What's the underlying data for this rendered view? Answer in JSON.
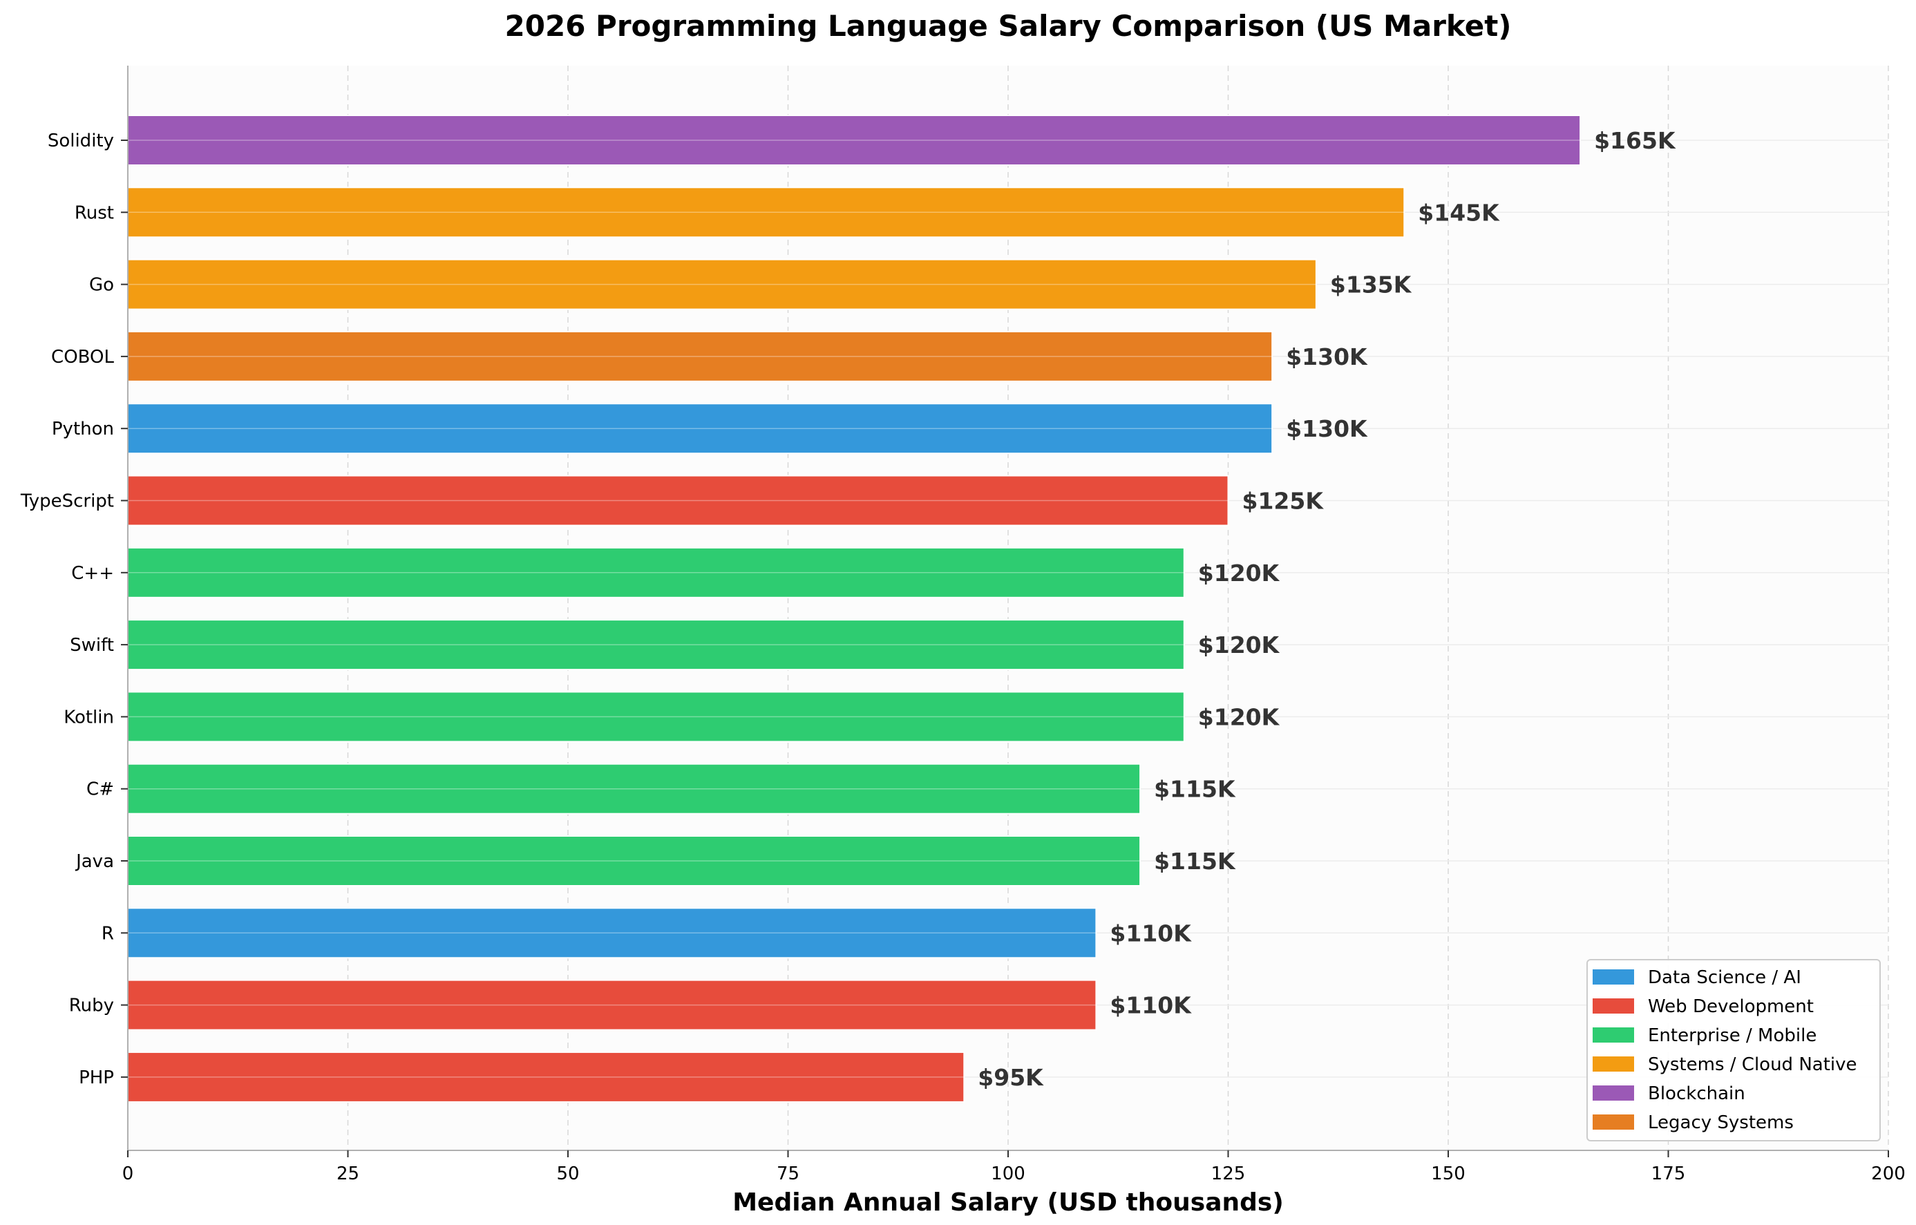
{
  "chart_data": {
    "type": "bar",
    "orientation": "horizontal",
    "title": "2026 Programming Language Salary Comparison (US Market)",
    "xlabel": "Median Annual Salary (USD thousands)",
    "ylabel": "",
    "xlim": [
      0,
      200
    ],
    "xticks": [
      "0",
      "25",
      "50",
      "75",
      "100",
      "125",
      "150",
      "175",
      "200"
    ],
    "grid": true,
    "legend_position": "lower-right",
    "categories": [
      "Solidity",
      "Rust",
      "Go",
      "COBOL",
      "Python",
      "TypeScript",
      "C++",
      "Swift",
      "Kotlin",
      "C#",
      "Java",
      "R",
      "Ruby",
      "PHP"
    ],
    "values": [
      165,
      145,
      135,
      130,
      130,
      125,
      120,
      120,
      120,
      115,
      115,
      110,
      110,
      95
    ],
    "value_labels": [
      "$165K",
      "$145K",
      "$135K",
      "$130K",
      "$130K",
      "$125K",
      "$120K",
      "$120K",
      "$120K",
      "$115K",
      "$115K",
      "$110K",
      "$110K",
      "$95K"
    ],
    "groups": [
      "Blockchain",
      "Systems / Cloud Native",
      "Systems / Cloud Native",
      "Legacy Systems",
      "Data Science / AI",
      "Web Development",
      "Enterprise / Mobile",
      "Enterprise / Mobile",
      "Enterprise / Mobile",
      "Enterprise / Mobile",
      "Enterprise / Mobile",
      "Data Science / AI",
      "Web Development",
      "Web Development"
    ],
    "legend": [
      {
        "label": "Data Science / AI",
        "color": "#3498db"
      },
      {
        "label": "Web Development",
        "color": "#e74c3c"
      },
      {
        "label": "Enterprise / Mobile",
        "color": "#2ecc71"
      },
      {
        "label": "Systems / Cloud Native",
        "color": "#f39c12"
      },
      {
        "label": "Blockchain",
        "color": "#9b59b6"
      },
      {
        "label": "Legacy Systems",
        "color": "#e67e22"
      }
    ]
  }
}
